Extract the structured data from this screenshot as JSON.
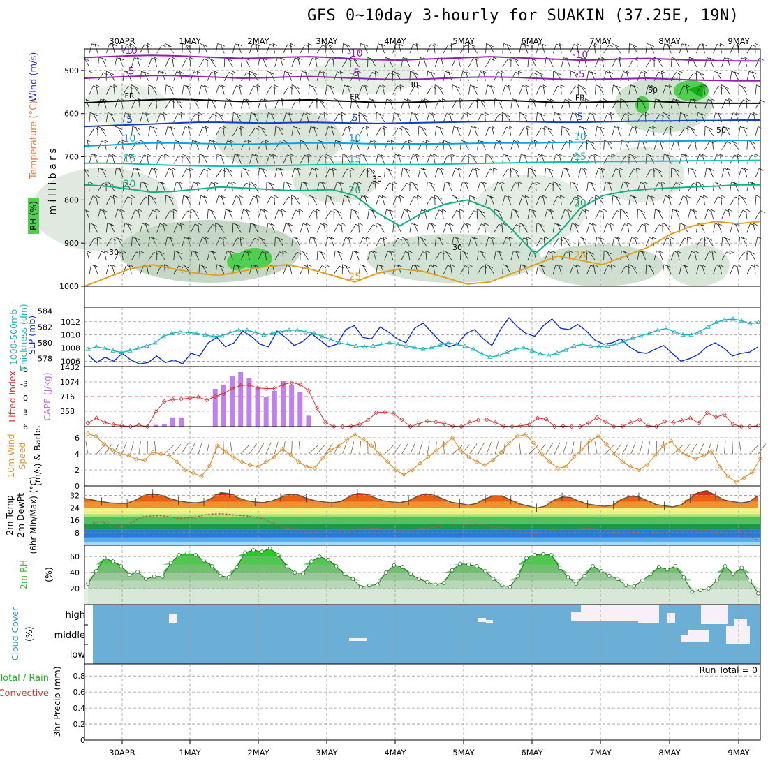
{
  "title": "GFS 0~10day 3-hourly for SUAKIN (37.25E, 19N)",
  "run_total": "Run Total = 0",
  "dates": [
    "30APR",
    "1MAY",
    "2MAY",
    "3MAY",
    "4MAY",
    "5MAY",
    "6MAY",
    "7MAY",
    "8MAY",
    "9MAY"
  ],
  "colors": {
    "rh_green": "#4fcf4f",
    "temp_label": "#e08050",
    "wind_label": "#3333aa",
    "cape_bar": "#c080f0",
    "lifted": "#e03030",
    "slp": "#1030d0",
    "thickness": "#20b0c0",
    "wind2m": "#e09030",
    "cloud_bg": "#6baed6",
    "cloud_fill": "#f8f0f8",
    "rh2m": "#40c040"
  },
  "chart_data": [
    {
      "type": "heatmap",
      "name": "upper-air",
      "ylabel": "millibars",
      "side_labels": [
        "Wind (m/s)",
        "Temperature (°C)",
        "RH (%)"
      ],
      "yticks": [
        500,
        600,
        700,
        800,
        900,
        1000
      ],
      "ylim": [
        450,
        1000
      ],
      "isotherm_labels": [
        "-10",
        "-5",
        "FR",
        "5",
        "10",
        "15",
        "20",
        "25",
        "30",
        "50"
      ],
      "isotherms": [
        {
          "label": "-10",
          "color": "#9020b0",
          "p": [
            470,
            468,
            466,
            465,
            466,
            468,
            470,
            472,
            471,
            469,
            468,
            470,
            473,
            475,
            476,
            474,
            472,
            470,
            468,
            470,
            472,
            474,
            476,
            475,
            473,
            472,
            474,
            476,
            477,
            478,
            478
          ]
        },
        {
          "label": "-5",
          "color": "#9020b0",
          "p": [
            518,
            516,
            514,
            512,
            512,
            514,
            516,
            518,
            517,
            515,
            514,
            516,
            518,
            520,
            521,
            520,
            518,
            516,
            515,
            516,
            518,
            520,
            521,
            520,
            519,
            518,
            520,
            522,
            523,
            524,
            524
          ]
        },
        {
          "label": "FR",
          "color": "#000000",
          "p": [
            575,
            572,
            570,
            568,
            567,
            568,
            570,
            572,
            571,
            569,
            568,
            570,
            572,
            574,
            574,
            573,
            571,
            570,
            569,
            570,
            572,
            574,
            574,
            573,
            572,
            571,
            573,
            575,
            576,
            576,
            576
          ]
        },
        {
          "label": "5",
          "color": "#1040c0",
          "p": [
            630,
            628,
            626,
            624,
            622,
            620,
            620,
            621,
            622,
            621,
            620,
            621,
            622,
            623,
            622,
            621,
            620,
            619,
            618,
            618,
            619,
            620,
            620,
            619,
            618,
            617,
            617,
            616,
            616,
            615,
            615
          ]
        },
        {
          "label": "10",
          "color": "#10a0e0",
          "p": [
            675,
            673,
            670,
            668,
            668,
            669,
            670,
            671,
            670,
            669,
            668,
            668,
            669,
            670,
            670,
            670,
            670,
            669,
            668,
            668,
            668,
            667,
            666,
            665,
            665,
            664,
            664,
            663,
            663,
            662,
            662
          ]
        },
        {
          "label": "15",
          "color": "#10c0b0",
          "p": [
            715,
            715,
            716,
            718,
            720,
            721,
            722,
            722,
            721,
            720,
            719,
            718,
            718,
            718,
            718,
            718,
            717,
            716,
            715,
            714,
            713,
            712,
            712,
            711,
            711,
            710,
            710,
            709,
            709,
            709,
            708
          ]
        },
        {
          "label": "20",
          "color": "#10b080",
          "p": [
            765,
            768,
            775,
            782,
            780,
            775,
            770,
            772,
            775,
            778,
            778,
            776,
            790,
            830,
            860,
            830,
            810,
            800,
            820,
            870,
            925,
            880,
            820,
            790,
            780,
            775,
            772,
            770,
            768,
            765,
            765
          ]
        },
        {
          "label": "25",
          "color": "#e0a020",
          "p": [
            1000,
            980,
            960,
            950,
            960,
            970,
            975,
            965,
            955,
            950,
            960,
            975,
            990,
            970,
            960,
            965,
            980,
            995,
            990,
            970,
            950,
            930,
            940,
            950,
            930,
            910,
            880,
            860,
            850,
            855,
            850
          ]
        }
      ],
      "rh_levels": [
        "30",
        "50"
      ]
    },
    {
      "type": "line",
      "name": "slp-thickness",
      "ylabel_left": "1000-500mb Thickness (dm)",
      "ylabel_right": "SLP (mb)",
      "yticks_left": [
        578,
        580,
        582,
        584
      ],
      "yticks_right": [
        1006,
        1008,
        1010,
        1012
      ],
      "ylim_left": [
        577,
        584.5
      ],
      "ylim_right": [
        1005.2,
        1014.2
      ],
      "series": [
        {
          "name": "SLP (mb)",
          "axis": "right",
          "color": "#1030d0",
          "values": [
            1007.0,
            1005.8,
            1006.6,
            1006.0,
            1007.2,
            1006.2,
            1005.6,
            1005.8,
            1006.8,
            1005.8,
            1006.2,
            1005.6,
            1007.2,
            1006.8,
            1008.8,
            1009.6,
            1008.2,
            1008.8,
            1010.6,
            1009.8,
            1008.6,
            1008.2,
            1010.6,
            1009.6,
            1008.4,
            1009.0,
            1010.2,
            1009.2,
            1008.2,
            1008.6,
            1010.8,
            1011.4,
            1009.6,
            1009.4,
            1011.2,
            1010.4,
            1009.4,
            1008.8,
            1011.0,
            1011.8,
            1010.4,
            1009.0,
            1008.2,
            1008.6,
            1010.2,
            1010.8,
            1009.4,
            1008.4,
            1010.8,
            1012.6,
            1011.2,
            1010.2,
            1009.8,
            1011.4,
            1012.4,
            1011.0,
            1010.8,
            1011.6,
            1010.6,
            1009.2,
            1008.6,
            1008.8,
            1009.4,
            1008.2,
            1007.4,
            1007.2,
            1007.8,
            1008.4,
            1007.2,
            1006.0,
            1006.4,
            1007.0,
            1008.2,
            1008.8,
            1008.0,
            1006.8,
            1007.2,
            1007.4,
            1008.2
          ]
        },
        {
          "name": "1000-500mb Thickness (dm)",
          "axis": "left",
          "color": "#20b0c0",
          "values": [
            579.2,
            579.5,
            579.3,
            579.0,
            578.8,
            579.0,
            579.3,
            579.6,
            580.0,
            580.8,
            581.2,
            581.4,
            581.3,
            581.2,
            581.0,
            580.8,
            580.9,
            581.3,
            581.6,
            581.6,
            581.3,
            581.0,
            581.2,
            581.4,
            581.6,
            581.6,
            581.4,
            581.2,
            580.8,
            580.4,
            580.0,
            579.8,
            579.6,
            579.5,
            579.6,
            579.8,
            580.0,
            579.8,
            579.6,
            579.4,
            579.2,
            579.4,
            579.7,
            580.0,
            579.8,
            579.6,
            579.2,
            578.6,
            578.2,
            578.4,
            578.8,
            579.2,
            579.4,
            579.0,
            578.6,
            578.4,
            578.7,
            579.1,
            579.6,
            579.8,
            579.6,
            579.5,
            579.6,
            579.8,
            580.2,
            580.6,
            580.9,
            581.2,
            581.6,
            581.8,
            581.4,
            581.0,
            581.0,
            581.4,
            582.0,
            582.6,
            582.9,
            583.0,
            582.8,
            582.4,
            582.6
          ]
        }
      ]
    },
    {
      "type": "bar",
      "name": "lifted-cape",
      "ylabel_left": "Lifted Index",
      "ylabel_right": "CAPE (J/kg)",
      "yticks_left": [
        "-6",
        "-3",
        "0",
        "3",
        "6"
      ],
      "yticks_right": [
        "1432",
        "1074",
        "716",
        "358"
      ],
      "ylim_cape": [
        0,
        1432
      ],
      "ylim_li": [
        -6,
        6
      ],
      "cape_values": [
        0,
        0,
        0,
        0,
        0,
        0,
        0,
        0,
        40,
        60,
        220,
        220,
        0,
        0,
        0,
        900,
        1000,
        1200,
        1300,
        1150,
        950,
        700,
        850,
        1100,
        1000,
        820,
        260,
        0,
        0,
        0,
        0,
        0,
        0,
        0,
        0,
        0,
        0,
        0,
        0,
        0,
        0,
        0,
        0,
        0,
        0,
        0,
        0,
        0,
        0,
        0,
        0,
        0,
        0,
        0,
        0,
        0,
        0,
        0,
        0,
        0,
        0,
        0,
        0,
        0,
        0,
        0,
        0,
        0,
        0,
        0,
        0,
        0,
        0,
        0,
        0,
        0,
        0,
        0,
        0,
        0
      ],
      "li_values": [
        5.3,
        4.3,
        5.2,
        5.6,
        5.8,
        6.0,
        5.7,
        6.0,
        3.0,
        1.0,
        0.6,
        0.5,
        0.3,
        0.1,
        0.7,
        0.0,
        -0.6,
        -1.6,
        -2.2,
        -2.3,
        -1.7,
        -1.6,
        -1.6,
        -2.4,
        -2.8,
        -2.4,
        -1.2,
        2.3,
        5.2,
        6.0,
        6.2,
        5.9,
        5.6,
        4.7,
        3.2,
        3.1,
        3.4,
        4.6,
        6.2,
        5.4,
        4.9,
        5.1,
        5.4,
        5.9,
        6.1,
        5.2,
        4.7,
        4.6,
        5.2,
        5.9,
        6.1,
        5.8,
        5.6,
        4.3,
        4.5,
        6.0,
        5.9,
        6.2,
        6.5,
        5.3,
        4.2,
        5.0,
        6.4,
        5.9,
        5.2,
        4.6,
        5.8,
        6.1,
        5.0,
        5.2,
        4.8,
        4.3,
        5.3,
        3.2,
        4.1,
        3.6,
        5.5,
        7.5,
        6.1,
        5.8
      ]
    },
    {
      "type": "line",
      "name": "wind10m",
      "ylabel": "10m Wind Speed (m/s) & Barbs",
      "yticks": [
        0,
        2,
        4,
        6
      ],
      "ylim": [
        0,
        7.4
      ],
      "series": [
        {
          "name": "10m Wind Speed",
          "color": "#e09030",
          "values": [
            6.5,
            6.2,
            5.2,
            4.5,
            4.0,
            3.8,
            3.3,
            3.2,
            4.2,
            4.0,
            3.8,
            3.0,
            2.0,
            1.6,
            1.2,
            2.5,
            5.0,
            4.3,
            3.5,
            3.0,
            2.6,
            2.4,
            3.0,
            3.6,
            4.6,
            3.9,
            3.0,
            2.4,
            2.2,
            3.5,
            4.5,
            5.0,
            5.8,
            6.4,
            5.8,
            5.0,
            4.0,
            3.0,
            2.0,
            1.4,
            2.0,
            2.8,
            3.6,
            4.4,
            5.2,
            6.0,
            4.5,
            3.6,
            3.0,
            2.6,
            3.2,
            4.2,
            5.4,
            6.2,
            6.4,
            5.4,
            4.0,
            3.0,
            2.2,
            2.4,
            3.6,
            4.6,
            5.6,
            6.2,
            5.2,
            4.0,
            3.0,
            2.4,
            2.0,
            2.6,
            3.8,
            5.0,
            5.6,
            4.4,
            3.8,
            3.4,
            3.8,
            4.3,
            2.4,
            1.2,
            0.5,
            1.0,
            1.7,
            3.4
          ]
        }
      ]
    },
    {
      "type": "area",
      "name": "temp-dewpoint",
      "ylabel": "2m Temp 2m DewPt (6hr Min/Max) (°C)",
      "yticks": [
        8,
        16,
        24,
        32
      ],
      "ylim": [
        0,
        38
      ],
      "series": [
        {
          "name": "2m Temp",
          "color": "#605040",
          "values": [
            30.0,
            29.0,
            28.0,
            27.2,
            26.8,
            26.8,
            29.0,
            32.0,
            33.0,
            32.0,
            30.0,
            28.5,
            27.6,
            27.2,
            27.8,
            30.5,
            33.8,
            33.0,
            30.5,
            28.6,
            27.7,
            27.3,
            28.5,
            30.6,
            32.8,
            32.3,
            30.2,
            28.6,
            27.8,
            27.3,
            28.0,
            31.0,
            33.2,
            32.8,
            30.6,
            28.6,
            27.8,
            27.3,
            28.5,
            31.3,
            33.0,
            32.0,
            29.8,
            27.6,
            26.8,
            25.8,
            26.8,
            29.8,
            31.8,
            31.5,
            29.0,
            26.5,
            25.2,
            23.9,
            25.0,
            28.8,
            31.0,
            30.6,
            28.2,
            26.4,
            25.6,
            25.0,
            25.8,
            29.5,
            31.5,
            31.0,
            28.6,
            26.2,
            25.3,
            24.6,
            26.0,
            30.0,
            34.0,
            35.0,
            32.0,
            29.0,
            28.0,
            27.2,
            28.0,
            32.0
          ]
        },
        {
          "name": "2m DewPt",
          "color": "#a06050",
          "values": [
            10.5,
            14.2,
            15.1,
            13.2,
            11.8,
            12.5,
            16.0,
            18.5,
            18.8,
            19.0,
            18.2,
            17.2,
            17.5,
            18.0,
            19.5,
            20.0,
            20.2,
            19.8,
            19.2,
            18.8,
            18.0,
            17.0,
            14.5,
            12.0,
            10.8,
            10.4,
            9.2,
            8.2,
            9.8,
            10.6,
            9.5,
            8.7,
            10.5,
            11.3,
            11.0,
            10.6,
            10.4,
            9.4,
            9.0,
            10.5,
            11.0,
            11.6,
            12.3,
            13.0,
            12.7,
            13.5,
            13.7,
            12.5,
            11.9,
            11.3,
            10.2,
            9.0,
            7.5,
            7.0,
            8.8,
            9.5,
            10.4,
            9.8,
            10.5,
            11.0,
            10.5,
            9.8,
            8.5,
            7.4,
            8.0,
            8.5,
            9.0,
            8.3,
            7.7,
            9.0,
            9.5,
            9.0,
            10.0,
            9.5,
            8.2,
            9.5,
            10.5,
            9.6,
            6.0,
            2.8
          ]
        }
      ]
    },
    {
      "type": "area",
      "name": "rh2m",
      "ylabel": "2m RH (%)",
      "yticks": [
        20,
        40,
        60
      ],
      "ylim": [
        0,
        74
      ],
      "series": [
        {
          "name": "2m RH",
          "color": "#40c040",
          "values": [
            26,
            42,
            58,
            54,
            48,
            37,
            41,
            32,
            35,
            35,
            52,
            62,
            64,
            62,
            55,
            48,
            36,
            34,
            47,
            65,
            68,
            66,
            70,
            62,
            48,
            40,
            39,
            54,
            60,
            56,
            48,
            38,
            32,
            22,
            24,
            25,
            40,
            49,
            47,
            38,
            32,
            28,
            25,
            27,
            43,
            51,
            50,
            48,
            42,
            32,
            24,
            22,
            36,
            58,
            62,
            63,
            62,
            46,
            34,
            26,
            36,
            48,
            42,
            36,
            32,
            24,
            23,
            30,
            38,
            47,
            44,
            48,
            34,
            16,
            18,
            20,
            30,
            48,
            38,
            46,
            30,
            14
          ]
        }
      ]
    },
    {
      "type": "heatmap",
      "name": "cloud-cover",
      "ylabel": "Cloud Cover (%)",
      "row_labels": [
        "high",
        "middle",
        "low"
      ]
    },
    {
      "type": "bar",
      "name": "precip",
      "ylabel": "3hr Precip (mm)",
      "legend": [
        "Total / Rain",
        "Convective"
      ],
      "yticks": [
        0,
        0.2,
        0.4,
        0.6,
        0.8
      ],
      "ylim": [
        0,
        0.95
      ],
      "values": []
    }
  ]
}
